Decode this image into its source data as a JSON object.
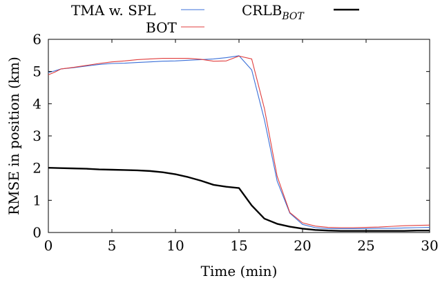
{
  "chart_data": {
    "type": "line",
    "title": "",
    "xlabel": "Time (min)",
    "ylabel": "RMSE in position (km)",
    "xlim": [
      0,
      30
    ],
    "ylim": [
      0,
      6
    ],
    "xticks": [
      0,
      5,
      10,
      15,
      20,
      25,
      30
    ],
    "yticks": [
      0,
      1,
      2,
      3,
      4,
      5,
      6
    ],
    "grid": false,
    "legend_position": "top",
    "series": [
      {
        "name": "TMA w. SPL",
        "legend_base": "TMA w. SPL",
        "legend_sub": "",
        "color": "#3a6fd8",
        "x": [
          0,
          0.5,
          1,
          2,
          3,
          4,
          5,
          6,
          7,
          8,
          9,
          10,
          11,
          12,
          13,
          14,
          15,
          16,
          17,
          18,
          19,
          20,
          21,
          22,
          23,
          24,
          25,
          26,
          27,
          28,
          29,
          30
        ],
        "y": [
          4.97,
          5.02,
          5.08,
          5.12,
          5.17,
          5.22,
          5.25,
          5.26,
          5.28,
          5.3,
          5.32,
          5.33,
          5.35,
          5.37,
          5.39,
          5.43,
          5.49,
          5.05,
          3.5,
          1.6,
          0.6,
          0.25,
          0.15,
          0.12,
          0.12,
          0.12,
          0.12,
          0.13,
          0.13,
          0.14,
          0.15,
          0.16
        ]
      },
      {
        "name": "BOT",
        "legend_base": "BOT",
        "legend_sub": "",
        "color": "#e03c3c",
        "x": [
          0,
          0.5,
          1,
          2,
          3,
          4,
          5,
          6,
          7,
          8,
          9,
          10,
          11,
          12,
          13,
          14,
          15,
          16,
          17,
          18,
          19,
          20,
          21,
          22,
          23,
          24,
          25,
          26,
          27,
          28,
          29,
          30
        ],
        "y": [
          4.9,
          4.98,
          5.08,
          5.13,
          5.19,
          5.25,
          5.3,
          5.33,
          5.37,
          5.39,
          5.41,
          5.41,
          5.41,
          5.38,
          5.32,
          5.33,
          5.48,
          5.39,
          3.85,
          1.75,
          0.62,
          0.3,
          0.2,
          0.16,
          0.15,
          0.15,
          0.16,
          0.17,
          0.19,
          0.21,
          0.22,
          0.23
        ]
      },
      {
        "name": "CRLB_BOT",
        "legend_base": "CRLB",
        "legend_sub": "BOT",
        "color": "#000000",
        "x": [
          0,
          1,
          2,
          3,
          4,
          5,
          6,
          7,
          8,
          9,
          10,
          11,
          12,
          13,
          14,
          15,
          16,
          17,
          18,
          19,
          20,
          21,
          22,
          23,
          24,
          25,
          26,
          27,
          28,
          29,
          30
        ],
        "y": [
          2.01,
          2.0,
          1.99,
          1.98,
          1.96,
          1.95,
          1.94,
          1.93,
          1.91,
          1.87,
          1.81,
          1.72,
          1.61,
          1.48,
          1.42,
          1.38,
          0.84,
          0.43,
          0.27,
          0.18,
          0.12,
          0.08,
          0.06,
          0.05,
          0.05,
          0.05,
          0.05,
          0.05,
          0.05,
          0.06,
          0.06
        ]
      }
    ]
  }
}
